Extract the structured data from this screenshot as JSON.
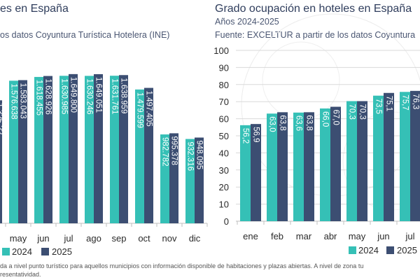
{
  "colors": {
    "s2024": "#35c0b6",
    "s2025": "#3c4e72",
    "grid": "#d9d9d9",
    "axis": "#bfbfbf"
  },
  "left_panel": {
    "title": "es en España",
    "source": "os datos Coyuntura Turística Hotelera (INE)"
  },
  "right_panel": {
    "title": "Grado ocupación en hoteles en España",
    "subtitle": "Años 2024-2025",
    "source": "Fuente: EXCELTUR a partir de los datos Coyuntura"
  },
  "chart_data": [
    {
      "type": "bar",
      "title": "es en España",
      "categories": [
        "may",
        "jun",
        "jul",
        "ago",
        "sep",
        "oct",
        "nov",
        "dic"
      ],
      "series": [
        {
          "name": "2024",
          "values": [
            1576638,
            1618455,
            1630985,
            1630246,
            1631761,
            1479599,
            982782,
            932316
          ],
          "labels": [
            "1.576.638",
            "1.618.455",
            "1.630.985",
            "1.630.246",
            "1.631.761",
            "1.479.599",
            "982.782",
            "932.316"
          ]
        },
        {
          "name": "2025",
          "values": [
            1583043,
            1628926,
            1649800,
            1649051,
            1638959,
            1497405,
            995378,
            948095
          ],
          "labels": [
            "1.583.043",
            "1.628.926",
            "1.649.800",
            "1.649.051",
            "1.638.959",
            "1.497.405",
            "995.378",
            "948.095"
          ]
        }
      ],
      "partial_label": "1.3?5.??",
      "ylim": [
        0,
        1850000
      ],
      "legend": [
        "2024",
        "2025"
      ]
    },
    {
      "type": "bar",
      "title": "Grado ocupación en hoteles en España",
      "categories": [
        "ene",
        "feb",
        "mar",
        "abr",
        "may",
        "jun",
        "jul"
      ],
      "series": [
        {
          "name": "2024",
          "values": [
            56.2,
            63.0,
            63.6,
            66.0,
            70.3,
            73.5,
            75.7
          ],
          "labels": [
            "56,2",
            "63,0",
            "63,6",
            "66,0",
            "70,3",
            "73,5",
            "75,7"
          ]
        },
        {
          "name": "2025",
          "values": [
            56.9,
            63.8,
            63.8,
            67.0,
            70.3,
            75.1,
            76.3
          ],
          "labels": [
            "56,9",
            "63,8",
            "63,8",
            "67,0",
            "70,3",
            "75,1",
            "76,3"
          ]
        }
      ],
      "yticks": [
        "0",
        "10",
        "20",
        "30",
        "40",
        "50",
        "60",
        "70",
        "80",
        "90",
        "100"
      ],
      "ylim": [
        0,
        100
      ],
      "legend": [
        "2024",
        "2025"
      ]
    }
  ],
  "footnote": {
    "line1": "da a nivel punto turístico para aquellos municipios con información disponible de habitaciones y plazas abiertas. A nivel de zona tu",
    "line2": "resentatividad."
  }
}
